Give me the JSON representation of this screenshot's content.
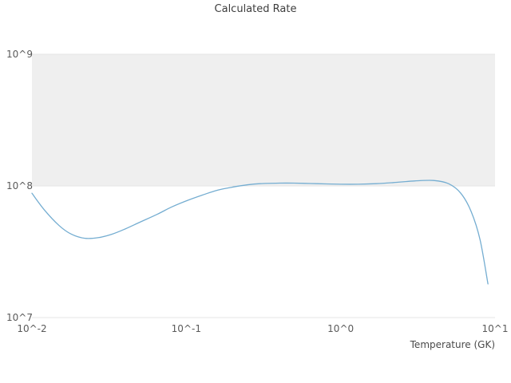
{
  "chart_data": {
    "type": "line",
    "title": "Calculated Rate",
    "xlabel": "Temperature (GK)",
    "ylabel": "",
    "x_scale": "log",
    "y_scale": "log",
    "xlim": [
      0.01,
      10
    ],
    "ylim": [
      10000000.0,
      1000000000.0
    ],
    "x_tick_values": [
      0.01,
      0.1,
      1,
      10
    ],
    "x_tick_labels": [
      "10^-2",
      "10^-1",
      "10^0",
      "10^1"
    ],
    "y_tick_values": [
      10000000.0,
      100000000.0,
      1000000000.0
    ],
    "y_tick_labels": [
      "10^7",
      "10^8",
      "10^9"
    ],
    "grid": "horizontal-only",
    "legend": "none",
    "colors": {
      "line": "#74add1",
      "band": "#efefef",
      "grid": "#e6e6e6",
      "background": "#ffffff"
    },
    "band": {
      "from": 100000000.0,
      "to": 1000000000.0
    },
    "series": [
      {
        "name": "Calculated Rate",
        "x": [
          0.01,
          0.012,
          0.015,
          0.018,
          0.022,
          0.027,
          0.033,
          0.04,
          0.05,
          0.065,
          0.08,
          0.1,
          0.13,
          0.16,
          0.2,
          0.25,
          0.3,
          0.4,
          0.5,
          0.7,
          1.0,
          1.3,
          1.7,
          2.2,
          3.0,
          4.0,
          5.0,
          6.0,
          7.0,
          8.0,
          9.0
        ],
        "y": [
          88000000.0,
          66000000.0,
          50000000.0,
          43000000.0,
          40000000.0,
          40500000.0,
          43000000.0,
          47000000.0,
          53000000.0,
          61000000.0,
          69000000.0,
          77000000.0,
          86000000.0,
          93000000.0,
          98000000.0,
          102000000.0,
          104000000.0,
          105000000.0,
          105000000.0,
          104000000.0,
          103000000.0,
          103000000.0,
          104000000.0,
          106000000.0,
          109000000.0,
          110000000.0,
          104000000.0,
          88000000.0,
          64000000.0,
          39000000.0,
          18000000.0
        ]
      }
    ]
  }
}
